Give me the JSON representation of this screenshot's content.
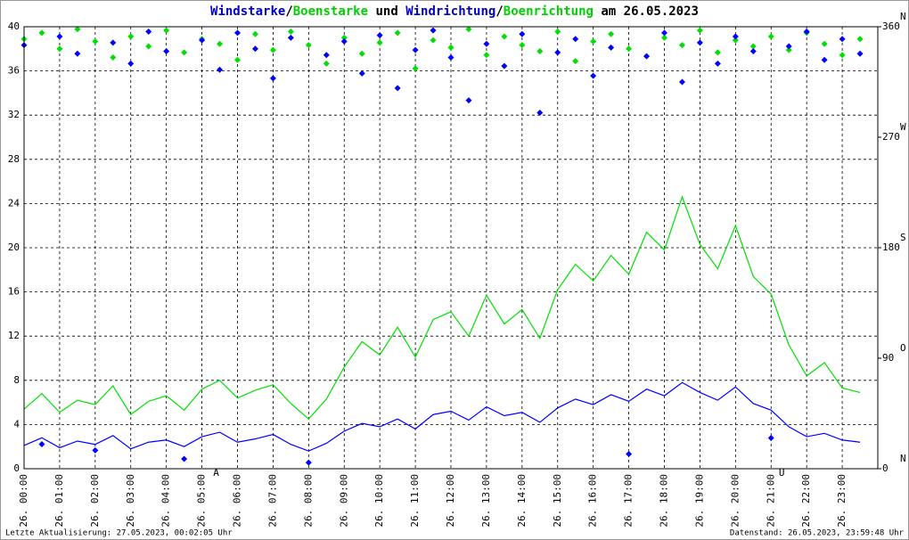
{
  "chart_data": {
    "type": "line",
    "title": [
      "Windstarke",
      "/",
      "Boenstarke",
      " und ",
      "Windrichtung",
      "/",
      "Boenrichtung",
      " am 26.05.2023"
    ],
    "title_colors": [
      "#0000cc",
      "#000000",
      "#00d000",
      "#000000",
      "#0000cc",
      "#000000",
      "#00d000",
      "#000000"
    ],
    "x": [
      0,
      0.5,
      1,
      1.5,
      2,
      2.5,
      3,
      3.5,
      4,
      4.5,
      5,
      5.5,
      6,
      6.5,
      7,
      7.5,
      8,
      8.5,
      9,
      9.5,
      10,
      10.5,
      11,
      11.5,
      12,
      12.5,
      13,
      13.5,
      14,
      14.5,
      15,
      15.5,
      16,
      16.5,
      17,
      17.5,
      18,
      18.5,
      19,
      19.5,
      20,
      20.5,
      21,
      21.5,
      22,
      22.5,
      23,
      23.5
    ],
    "series": [
      {
        "name": "Boenstarke",
        "kind": "line",
        "color": "#00e000",
        "values": [
          5.4,
          6.8,
          5.1,
          6.2,
          5.8,
          7.5,
          4.9,
          6.1,
          6.6,
          5.3,
          7.2,
          8.0,
          6.4,
          7.1,
          7.6,
          5.9,
          4.5,
          6.3,
          9.2,
          11.5,
          10.3,
          12.8,
          10.1,
          13.5,
          14.2,
          12.0,
          15.7,
          13.1,
          14.4,
          11.8,
          16.2,
          18.5,
          17.0,
          19.3,
          17.6,
          21.4,
          19.8,
          24.6,
          20.3,
          18.1,
          22.0,
          17.4,
          15.8,
          11.2,
          8.4,
          9.6,
          7.3,
          6.9
        ]
      },
      {
        "name": "Windstarke",
        "kind": "line",
        "color": "#0000ff",
        "values": [
          2.1,
          2.8,
          1.9,
          2.5,
          2.2,
          3.0,
          1.8,
          2.4,
          2.6,
          2.0,
          2.9,
          3.3,
          2.4,
          2.7,
          3.1,
          2.2,
          1.6,
          2.3,
          3.4,
          4.1,
          3.8,
          4.5,
          3.6,
          4.9,
          5.2,
          4.4,
          5.6,
          4.8,
          5.1,
          4.2,
          5.5,
          6.3,
          5.8,
          6.7,
          6.1,
          7.2,
          6.6,
          7.8,
          6.9,
          6.2,
          7.4,
          5.9,
          5.3,
          3.8,
          2.9,
          3.2,
          2.6,
          2.4
        ]
      },
      {
        "name": "Boenrichtung",
        "kind": "scatter",
        "axis": "y2",
        "color": "#00e000",
        "values": [
          350,
          355,
          342,
          358,
          348,
          335,
          352,
          344,
          357,
          339,
          350,
          346,
          333,
          354,
          341,
          356,
          345,
          330,
          351,
          338,
          347,
          355,
          326,
          349,
          343,
          358,
          337,
          352,
          345,
          340,
          356,
          332,
          348,
          354,
          342,
          336,
          351,
          345,
          357,
          339,
          349,
          344,
          352,
          341,
          355,
          346,
          337,
          350
        ]
      },
      {
        "name": "Windrichtung",
        "kind": "scatter",
        "axis": "y2",
        "color": "#0000ff",
        "values": [
          345,
          20,
          352,
          338,
          15,
          347,
          330,
          356,
          340,
          8,
          349,
          325,
          355,
          342,
          318,
          351,
          5,
          337,
          348,
          322,
          353,
          310,
          341,
          357,
          335,
          300,
          346,
          328,
          354,
          290,
          339,
          350,
          320,
          343,
          12,
          336,
          355,
          315,
          347,
          330,
          352,
          340,
          25,
          344,
          356,
          333,
          350,
          338
        ]
      }
    ],
    "xlim": [
      0,
      24
    ],
    "xticks": [
      {
        "value": 0,
        "label": "26. 00:00"
      },
      {
        "value": 1,
        "label": "26. 01:00"
      },
      {
        "value": 2,
        "label": "26. 02:00"
      },
      {
        "value": 3,
        "label": "26. 03:00"
      },
      {
        "value": 4,
        "label": "26. 04:00"
      },
      {
        "value": 5,
        "label": "26. 05:00"
      },
      {
        "value": 6,
        "label": "26. 06:00"
      },
      {
        "value": 7,
        "label": "26. 07:00"
      },
      {
        "value": 8,
        "label": "26. 08:00"
      },
      {
        "value": 9,
        "label": "26. 09:00"
      },
      {
        "value": 10,
        "label": "26. 10:00"
      },
      {
        "value": 11,
        "label": "26. 11:00"
      },
      {
        "value": 12,
        "label": "26. 12:00"
      },
      {
        "value": 13,
        "label": "26. 13:00"
      },
      {
        "value": 14,
        "label": "26. 14:00"
      },
      {
        "value": 15,
        "label": "26. 15:00"
      },
      {
        "value": 16,
        "label": "26. 16:00"
      },
      {
        "value": 17,
        "label": "26. 17:00"
      },
      {
        "value": 18,
        "label": "26. 18:00"
      },
      {
        "value": 19,
        "label": "26. 19:00"
      },
      {
        "value": 20,
        "label": "26. 20:00"
      },
      {
        "value": 21,
        "label": "26. 21:00"
      },
      {
        "value": 22,
        "label": "26. 22:00"
      },
      {
        "value": 23,
        "label": "26. 23:00"
      }
    ],
    "ylim": [
      0,
      40
    ],
    "yticks": [
      0,
      4,
      8,
      12,
      16,
      20,
      24,
      28,
      32,
      36,
      40
    ],
    "y2lim": [
      0,
      360
    ],
    "y2ticks": [
      0,
      90,
      180,
      270,
      360
    ],
    "y2tick_directions": [
      "N",
      "O",
      "S",
      "W",
      "N"
    ],
    "grid": true,
    "annotations": [
      {
        "x": 5.4,
        "text": "A"
      },
      {
        "x": 21.3,
        "text": "U"
      }
    ],
    "footer_left": "Letzte Aktualisierung: 27.05.2023, 00:02:05 Uhr",
    "footer_right": "Datenstand: 26.05.2023, 23:59:48 Uhr"
  }
}
